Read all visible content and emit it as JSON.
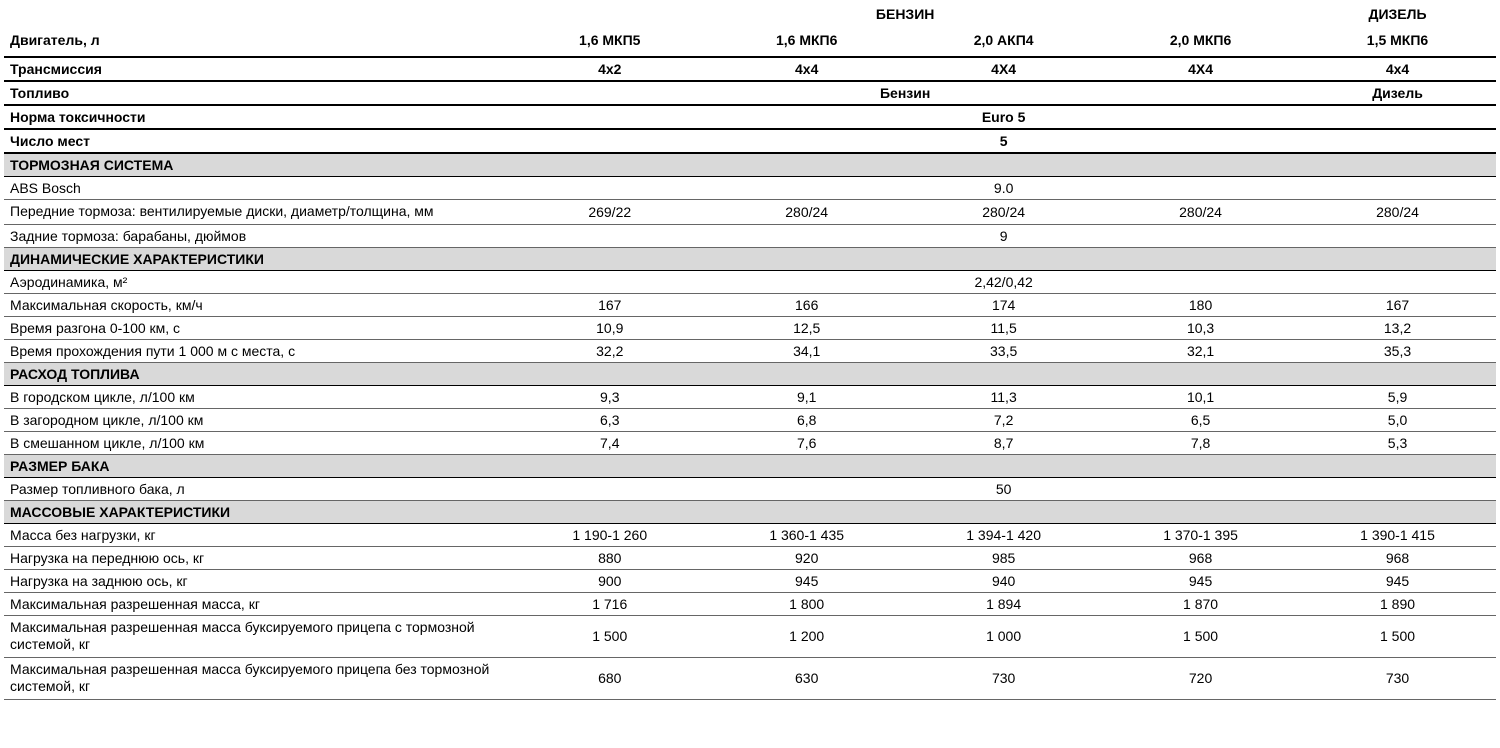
{
  "colors": {
    "section_bg": "#d9d9d9",
    "border": "#000000",
    "border_light": "#666666",
    "text": "#000000",
    "background": "#ffffff"
  },
  "fuel_groups": {
    "petrol": "БЕНЗИН",
    "diesel": "ДИЗЕЛЬ"
  },
  "row_engine": {
    "label": "Двигатель, л",
    "v": [
      "1,6 МКП5",
      "1,6 МКП6",
      "2,0 АКП4",
      "2,0  МКП6",
      "1,5 МКП6"
    ]
  },
  "row_trans": {
    "label": "Трансмиссия",
    "v": [
      "4х2",
      "4х4",
      "4Х4",
      "4Х4",
      "4х4"
    ]
  },
  "row_fuel": {
    "label": "Топливо",
    "petrol": "Бензин",
    "diesel": "Дизель"
  },
  "row_emission": {
    "label": "Норма токсичности",
    "value": "Euro 5"
  },
  "row_seats": {
    "label": "Число мест",
    "value": "5"
  },
  "sec_brakes": "ТОРМОЗНАЯ СИСТЕМА",
  "row_abs": {
    "label": "ABS Bosch",
    "value": "9.0"
  },
  "row_front_brakes": {
    "label": "Передние тормоза: вентилируемые диски, диаметр/толщина, мм",
    "v": [
      "269/22",
      "280/24",
      "280/24",
      "280/24",
      "280/24"
    ]
  },
  "row_rear_brakes": {
    "label": "Задние тормоза: барабаны, дюймов",
    "value": "9"
  },
  "sec_dynamics": "ДИНАМИЧЕСКИЕ ХАРАКТЕРИСТИКИ",
  "row_aero": {
    "label": "Аэродинамика, м²",
    "value": "2,42/0,42"
  },
  "row_maxspeed": {
    "label": "Максимальная скорость, км/ч",
    "v": [
      "167",
      "166",
      "174",
      "180",
      "167"
    ]
  },
  "row_accel": {
    "label": "Время разгона 0-100 км, с",
    "v": [
      "10,9",
      "12,5",
      "11,5",
      "10,3",
      "13,2"
    ]
  },
  "row_1000m": {
    "label": "Время прохождения пути 1 000 м с места, с",
    "v": [
      "32,2",
      "34,1",
      "33,5",
      "32,1",
      "35,3"
    ]
  },
  "sec_fuel_cons": "РАСХОД ТОПЛИВА",
  "row_city": {
    "label": "В городском цикле, л/100 км",
    "v": [
      "9,3",
      "9,1",
      "11,3",
      "10,1",
      "5,9"
    ]
  },
  "row_highway": {
    "label": "В загородном цикле, л/100 км",
    "v": [
      "6,3",
      "6,8",
      "7,2",
      "6,5",
      "5,0"
    ]
  },
  "row_mixed": {
    "label": "В смешанном цикле, л/100 км",
    "v": [
      "7,4",
      "7,6",
      "8,7",
      "7,8",
      "5,3"
    ]
  },
  "sec_tank": "РАЗМЕР БАКА",
  "row_tank": {
    "label": "Размер топливного бака, л",
    "value": "50"
  },
  "sec_mass": "МАССОВЫЕ ХАРАКТЕРИСТИКИ",
  "row_mass_empty": {
    "label": "Масса без нагрузки, кг",
    "v": [
      "1 190-1 260",
      "1 360-1 435",
      "1 394-1 420",
      "1 370-1 395",
      "1 390-1 415"
    ]
  },
  "row_load_front": {
    "label": "Нагрузка на переднюю ось, кг",
    "v": [
      "880",
      "920",
      "985",
      "968",
      "968"
    ]
  },
  "row_load_rear": {
    "label": "Нагрузка на заднюю ось, кг",
    "v": [
      "900",
      "945",
      "940",
      "945",
      "945"
    ]
  },
  "row_max_mass": {
    "label": "Максимальная разрешенная масса, кг",
    "v": [
      "1 716",
      "1 800",
      "1 894",
      "1 870",
      "1 890"
    ]
  },
  "row_trailer_braked": {
    "label": "Максимальная разрешенная масса буксируемого прицепа с тормозной системой, кг",
    "v": [
      "1 500",
      "1 200",
      "1 000",
      "1 500",
      "1 500"
    ]
  },
  "row_trailer_unbraked": {
    "label": "Максимальная разрешенная масса буксируемого прицепа без тормозной системой, кг",
    "v": [
      "680",
      "630",
      "730",
      "720",
      "730"
    ]
  }
}
